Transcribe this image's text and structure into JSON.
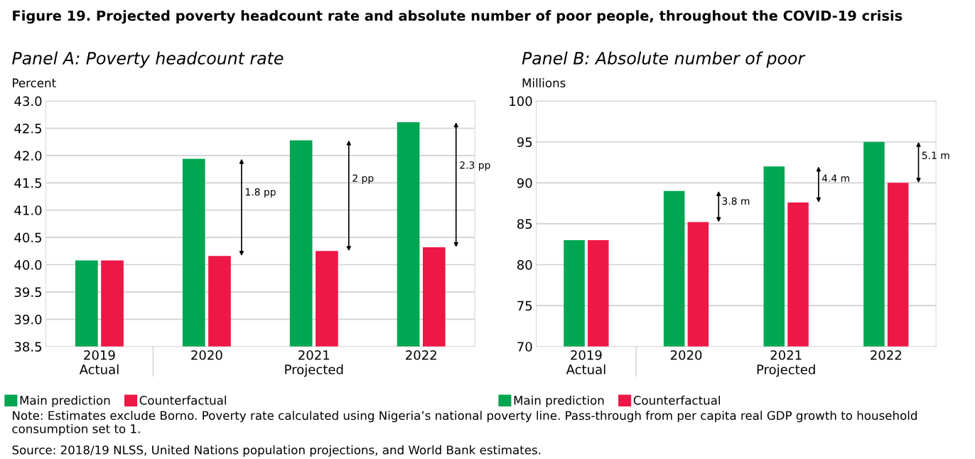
{
  "chart_data": [
    {
      "type": "bar",
      "title": "Figure 19. Projected poverty headcount rate and absolute number of poor people, throughout the COVID-19 crisis",
      "subtitle": "Panel A: Poverty headcount rate",
      "ylabel": "Percent",
      "categories": [
        "2019\nActual",
        "2020",
        "2021\nProjected",
        "2022"
      ],
      "series": [
        {
          "name": "Main prediction",
          "color": "#00a651",
          "values": [
            40.08,
            41.94,
            42.28,
            42.61
          ]
        },
        {
          "name": "Counterfactual",
          "color": "#ed1846",
          "values": [
            40.08,
            40.16,
            40.25,
            40.32
          ]
        }
      ],
      "ylim": [
        38.5,
        43.0
      ],
      "yticks": [
        {
          "value": 38.5,
          "label": "38.5"
        },
        {
          "value": 39.0,
          "label": "39.0"
        },
        {
          "value": 39.5,
          "label": "39.5"
        },
        {
          "value": 40.0,
          "label": "40.0"
        },
        {
          "value": 40.5,
          "label": "40.5"
        },
        {
          "value": 41.0,
          "label": "41.0"
        },
        {
          "value": 41.5,
          "label": "41.5"
        },
        {
          "value": 42.0,
          "label": "42.0"
        },
        {
          "value": 42.5,
          "label": "42.5"
        },
        {
          "value": 43.0,
          "label": "43.0"
        }
      ],
      "grid": "y",
      "legend": "bottom left",
      "annotations": [
        "1.8 pp",
        "2 pp",
        "2.3 pp",
        "Note: Estimates exclude Borno. Poverty rate calculated using Nigeria’s national poverty line. Pass-through from per capita real GDP growth to household consumption set to 1.",
        "Source: 2018/19 NLSS, United Nations population projections, and World Bank estimates."
      ]
    },
    {
      "type": "bar",
      "subtitle": "Panel B: Absolute number of poor",
      "ylabel": "Millions",
      "categories": [
        "2019\nActual",
        "2020",
        "2021\nProjected",
        "2022"
      ],
      "series": [
        {
          "name": "Main prediction",
          "color": "#00a651",
          "values": [
            83.0,
            89.0,
            92.0,
            95.0
          ]
        },
        {
          "name": "Counterfactual",
          "color": "#ed1846",
          "values": [
            83.0,
            85.2,
            87.6,
            90.0
          ]
        }
      ],
      "ylim": [
        70,
        100
      ],
      "yticks": [
        70,
        75,
        80,
        85,
        90,
        95,
        100
      ],
      "grid": "y",
      "legend": "bottom left",
      "annotations": [
        "3.8 m",
        "4.4 m",
        "5.1 m"
      ]
    }
  ]
}
